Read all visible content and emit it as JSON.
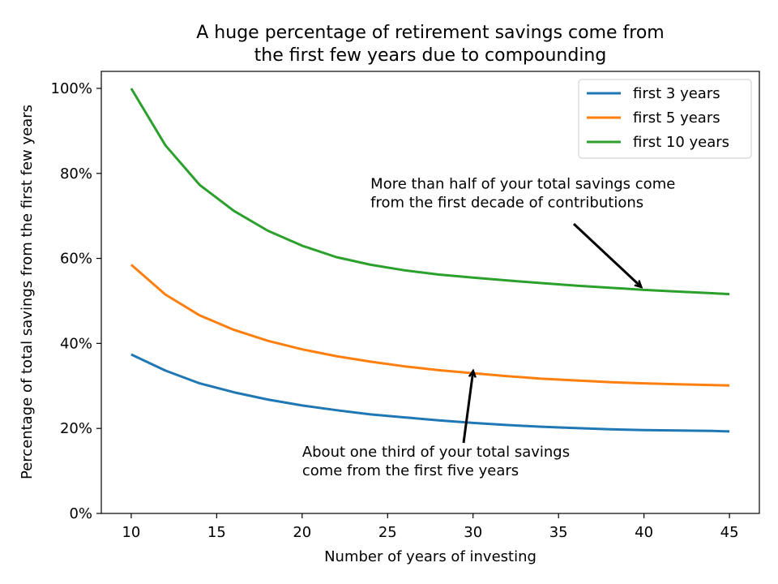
{
  "chart_data": {
    "type": "line",
    "title": [
      "A huge percentage of retirement savings come from",
      "the first few years due to compounding"
    ],
    "xlabel": "Number of years of investing",
    "ylabel": "Percentage of total savings from the first few years",
    "xlim": [
      8.25,
      46.75
    ],
    "ylim": [
      0,
      104
    ],
    "xticks": [
      10,
      15,
      20,
      25,
      30,
      35,
      40,
      45
    ],
    "yticks": [
      0,
      20,
      40,
      60,
      80,
      100
    ],
    "ytick_format": "percent",
    "grid": false,
    "legend_position": "top-right",
    "x": [
      10,
      12,
      14,
      16,
      18,
      20,
      22,
      24,
      26,
      28,
      30,
      32,
      34,
      36,
      38,
      40,
      42,
      44,
      45
    ],
    "series": [
      {
        "name": "first 3 years",
        "color": "#1f77b4",
        "values": [
          37.4,
          33.6,
          30.6,
          28.5,
          26.8,
          25.4,
          24.3,
          23.3,
          22.6,
          21.9,
          21.3,
          20.8,
          20.4,
          20.1,
          19.8,
          19.6,
          19.5,
          19.4,
          19.3
        ]
      },
      {
        "name": "first 5 years",
        "color": "#ff7f0e",
        "values": [
          58.5,
          51.5,
          46.6,
          43.2,
          40.6,
          38.6,
          37.0,
          35.7,
          34.6,
          33.7,
          33.0,
          32.3,
          31.7,
          31.3,
          30.9,
          30.6,
          30.4,
          30.2,
          30.1
        ]
      },
      {
        "name": "first 10 years",
        "color": "#2ca02c",
        "values": [
          100,
          86.6,
          77.3,
          71.2,
          66.5,
          63.0,
          60.3,
          58.5,
          57.2,
          56.2,
          55.5,
          54.8,
          54.2,
          53.6,
          53.1,
          52.6,
          52.2,
          51.8,
          51.6
        ]
      }
    ],
    "annotations": [
      {
        "lines": [
          "More than half of your total savings come",
          "from the first decade of contributions"
        ],
        "text_at": [
          24,
          72
        ],
        "arrow_to": [
          40,
          53
        ]
      },
      {
        "lines": [
          "About one third of your total savings",
          "come from the first five years"
        ],
        "text_at": [
          20,
          9
        ],
        "arrow_to": [
          30,
          33
        ]
      }
    ]
  }
}
